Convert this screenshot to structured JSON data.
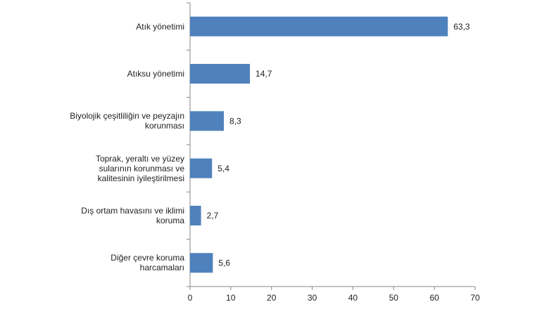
{
  "chart_data": {
    "type": "bar",
    "orientation": "horizontal",
    "categories": [
      "Atık yönetimi",
      "Atıksu yönetimi",
      "Biyolojik çeşitliliğin ve peyzajın korunması",
      "Toprak, yeraltı ve yüzey sularının korunması ve kalitesinin iyileştirilmesi",
      "Dış ortam havasını ve iklimi koruma",
      "Diğer çevre koruma harcamaları"
    ],
    "values": [
      63.3,
      14.7,
      8.3,
      5.4,
      2.7,
      5.6
    ],
    "value_labels": [
      "63,3",
      "14,7",
      "8,3",
      "5,4",
      "2,7",
      "5,6"
    ],
    "color": "#4f81bd",
    "xlim": [
      0,
      70
    ],
    "xticks": [
      0,
      10,
      20,
      30,
      40,
      50,
      60,
      70
    ],
    "grid": false
  }
}
